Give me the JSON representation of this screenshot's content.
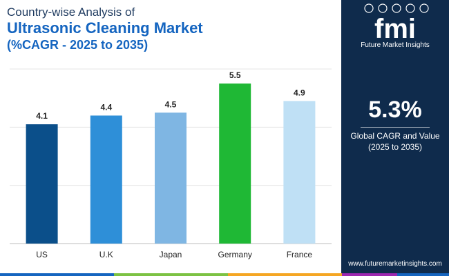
{
  "title": {
    "line1": "Country-wise Analysis of",
    "line2": "Ultrasonic Cleaning Market",
    "line3": "(%CAGR - 2025 to 2035)"
  },
  "chart_data": {
    "type": "bar",
    "categories": [
      "US",
      "U.K",
      "Japan",
      "Germany",
      "France"
    ],
    "values": [
      4.1,
      4.4,
      4.5,
      5.5,
      4.9
    ],
    "colors": [
      "#0b4f8a",
      "#2e8fd8",
      "#7fb6e3",
      "#1fb835",
      "#bfe0f5"
    ],
    "ylim": [
      0,
      6
    ],
    "grid": true,
    "legend": "none",
    "title": "",
    "xlabel": "",
    "ylabel": ""
  },
  "sidebar": {
    "logo_text": "Future Market Insights",
    "global_value": "5.3%",
    "global_label_1": "Global CAGR and Value",
    "global_label_2": "(2025 to 2035)",
    "website": "www.futuremarketinsights.com",
    "background_color": "#0f2b4c"
  },
  "bottom_bar_colors": [
    "#1565c0",
    "#7cc243",
    "#f5a623",
    "#9c27b0",
    "#1565c0"
  ]
}
